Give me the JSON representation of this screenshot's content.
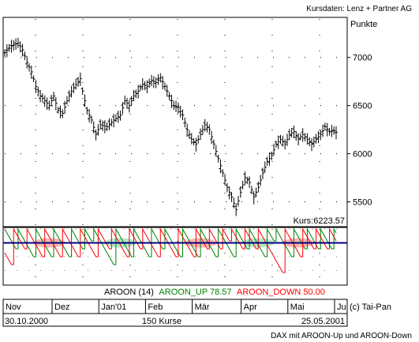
{
  "header": {
    "source": "Kursdaten: Lenz + Partner AG"
  },
  "footer": {
    "caption": "DAX mit AROON-Up und AROON-Down",
    "copyright": "(c) Tai-Pan"
  },
  "colors": {
    "price": "#000000",
    "aroon_up": "#008000",
    "aroon_down": "#ff0000",
    "level": "#000080",
    "highlight_red": "#ffb4b4",
    "highlight_green": "#b4e6c8"
  },
  "chart_data": [
    {
      "type": "ohlc",
      "ylabel": "Punkte",
      "yticks": [
        5500,
        6000,
        6500,
        7000
      ],
      "ylim": [
        5250,
        7400
      ],
      "grid": "dotted",
      "last_value_label": "Kurs:6223.57",
      "bars_count_label": "150 Kurse",
      "start_date": "30.10.2000",
      "end_date": "25.05.2001",
      "months": [
        "Nov",
        "Dez",
        "Jan'01",
        "Feb",
        "Mär",
        "Apr",
        "Mai",
        "Ju"
      ],
      "close_path": [
        [
          0,
          7050
        ],
        [
          3,
          7120
        ],
        [
          6,
          7150
        ],
        [
          8,
          7080
        ],
        [
          10,
          6950
        ],
        [
          12,
          6850
        ],
        [
          14,
          6700
        ],
        [
          16,
          6600
        ],
        [
          18,
          6550
        ],
        [
          20,
          6500
        ],
        [
          22,
          6600
        ],
        [
          24,
          6450
        ],
        [
          26,
          6420
        ],
        [
          28,
          6550
        ],
        [
          30,
          6650
        ],
        [
          32,
          6720
        ],
        [
          34,
          6780
        ],
        [
          35,
          6650
        ],
        [
          37,
          6450
        ],
        [
          39,
          6350
        ],
        [
          41,
          6200
        ],
        [
          43,
          6300
        ],
        [
          46,
          6280
        ],
        [
          49,
          6350
        ],
        [
          52,
          6400
        ],
        [
          54,
          6550
        ],
        [
          56,
          6500
        ],
        [
          58,
          6600
        ],
        [
          60,
          6650
        ],
        [
          62,
          6720
        ],
        [
          64,
          6700
        ],
        [
          66,
          6760
        ],
        [
          68,
          6740
        ],
        [
          70,
          6790
        ],
        [
          72,
          6700
        ],
        [
          74,
          6600
        ],
        [
          76,
          6500
        ],
        [
          78,
          6480
        ],
        [
          80,
          6400
        ],
        [
          82,
          6250
        ],
        [
          84,
          6150
        ],
        [
          86,
          6100
        ],
        [
          88,
          6200
        ],
        [
          90,
          6300
        ],
        [
          92,
          6250
        ],
        [
          94,
          6100
        ],
        [
          96,
          5950
        ],
        [
          98,
          5800
        ],
        [
          100,
          5650
        ],
        [
          102,
          5550
        ],
        [
          104,
          5420
        ],
        [
          106,
          5600
        ],
        [
          108,
          5750
        ],
        [
          110,
          5700
        ],
        [
          112,
          5550
        ],
        [
          114,
          5650
        ],
        [
          116,
          5800
        ],
        [
          118,
          5920
        ],
        [
          120,
          5980
        ],
        [
          122,
          6100
        ],
        [
          124,
          6150
        ],
        [
          126,
          6100
        ],
        [
          128,
          6200
        ],
        [
          130,
          6230
        ],
        [
          132,
          6150
        ],
        [
          134,
          6200
        ],
        [
          136,
          6150
        ],
        [
          138,
          6100
        ],
        [
          140,
          6150
        ],
        [
          142,
          6200
        ],
        [
          144,
          6280
        ],
        [
          146,
          6230
        ],
        [
          148,
          6240
        ],
        [
          149,
          6223.57
        ]
      ],
      "indicator": {
        "type": "line",
        "title": "AROON (14)",
        "ylim": [
          0,
          100
        ],
        "level": 75,
        "series": [
          {
            "name": "AROON_UP",
            "last_value": 78.57,
            "reset_points": [
              0,
              6,
              14,
              22,
              30,
              36,
              40,
              50,
              58,
              66,
              72,
              80,
              88,
              96,
              104,
              110,
              118,
              122,
              130,
              136,
              142,
              148
            ]
          },
          {
            "name": "AROON_DOWN",
            "last_value": 50.0,
            "reset_points": [
              4,
              10,
              18,
              26,
              34,
              42,
              48,
              56,
              62,
              70,
              78,
              86,
              92,
              98,
              102,
              108,
              114,
              126,
              134,
              140,
              146
            ]
          }
        ],
        "up_label": "AROON_UP 78.57",
        "down_label": "AROON_DOWN 50.00"
      }
    }
  ]
}
